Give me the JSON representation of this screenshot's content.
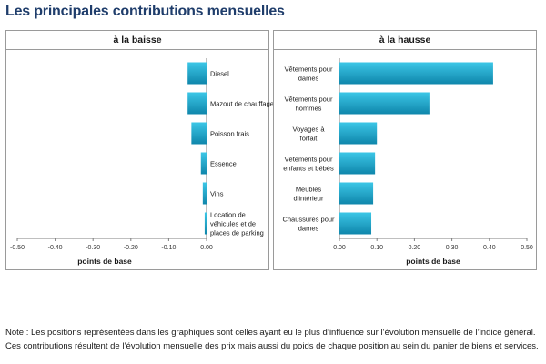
{
  "title": "Les principales contributions mensuelles",
  "note": "Note : Les positions représentées dans les graphiques sont celles ayant eu le plus d’influence sur l’évolution mensuelle de l’indice général. Ces contributions résultent de l’évolution mensuelle des prix mais aussi du poids de chaque position au sein du panier de biens et services.",
  "colors": {
    "bar_top": "#3cc6e6",
    "bar_bottom": "#0f86ab",
    "axis": "#7f7f7f",
    "panel_border": "#9a9a9a",
    "title": "#1f3d6b"
  },
  "chart_data": [
    {
      "type": "bar",
      "orientation": "horizontal",
      "title": "à la baisse",
      "xlabel": "points de base",
      "ylabel": "",
      "xlim": [
        -0.5,
        0.0
      ],
      "xticks": [
        "-0.50",
        "-0.40",
        "-0.30",
        "-0.20",
        "-0.10",
        "0.00"
      ],
      "categories": [
        "Diesel",
        "Mazout de chauffage",
        "Poisson frais",
        "Essence",
        "Vins",
        "Location de véhicules et de places de parking"
      ],
      "values": [
        -0.05,
        -0.05,
        -0.04,
        -0.015,
        -0.01,
        -0.005
      ],
      "grid": false,
      "legend": "none"
    },
    {
      "type": "bar",
      "orientation": "horizontal",
      "title": "à la hausse",
      "xlabel": "points de base",
      "ylabel": "",
      "xlim": [
        0.0,
        0.5
      ],
      "xticks": [
        "0.00",
        "0.10",
        "0.20",
        "0.30",
        "0.40",
        "0.50"
      ],
      "categories": [
        "Vêtements pour dames",
        "Vêtements pour hommes",
        "Voyages à forfait",
        "Vêtements pour enfants et bébés",
        "Meubles d’intérieur",
        "Chaussures pour dames"
      ],
      "values": [
        0.41,
        0.24,
        0.1,
        0.095,
        0.09,
        0.085
      ],
      "grid": false,
      "legend": "none"
    }
  ]
}
